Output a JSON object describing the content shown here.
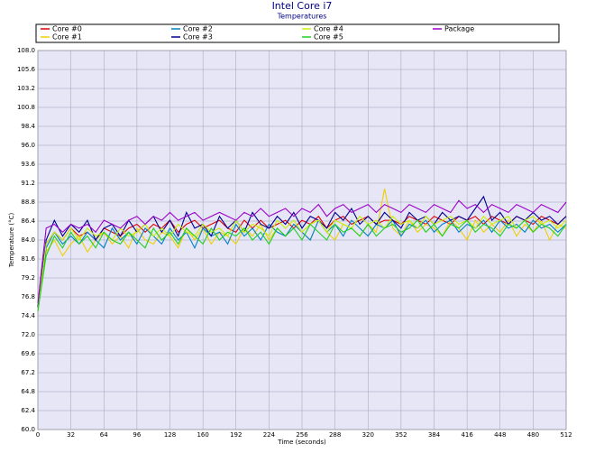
{
  "chart_data": {
    "type": "line",
    "title": "Intel Core i7",
    "subtitle": "Temperatures",
    "x_label": "Time (seconds)",
    "y_label": "Temperature (°C)",
    "x": [
      0,
      8,
      16,
      24,
      32,
      40,
      48,
      56,
      64,
      72,
      80,
      88,
      96,
      104,
      112,
      120,
      128,
      136,
      144,
      152,
      160,
      168,
      176,
      184,
      192,
      200,
      208,
      216,
      224,
      232,
      240,
      248,
      256,
      264,
      272,
      280,
      288,
      296,
      304,
      312,
      320,
      328,
      336,
      344,
      352,
      360,
      368,
      376,
      384,
      392,
      400,
      408,
      416,
      424,
      432,
      440,
      448,
      456,
      464,
      472,
      480,
      488,
      496,
      504,
      512
    ],
    "xlim": [
      0,
      512
    ],
    "xticks": [
      0,
      32,
      64,
      96,
      128,
      160,
      192,
      224,
      256,
      288,
      320,
      352,
      384,
      416,
      448,
      480,
      512
    ],
    "ylim": [
      60,
      108
    ],
    "yticks": [
      {
        "value": 60,
        "label": "60.0"
      },
      62.4,
      64.8,
      67.2,
      69.6,
      {
        "value": 72,
        "label": "72.0"
      },
      74.4,
      76.8,
      79.2,
      81.6,
      {
        "value": 84,
        "label": "84.0"
      },
      86.4,
      88.8,
      91.2,
      93.6,
      {
        "value": 96,
        "label": "96.0"
      },
      98.4,
      100.8,
      103.2,
      105.6,
      {
        "value": 108,
        "label": "108.0"
      }
    ],
    "grid": true,
    "series": [
      {
        "name": "Core #0",
        "color": "#e00000",
        "values": [
          75.5,
          83.5,
          85.0,
          84.0,
          85.5,
          84.5,
          85.0,
          84.0,
          85.5,
          85.0,
          84.5,
          85.5,
          86.0,
          85.0,
          86.0,
          85.5,
          86.5,
          85.0,
          86.0,
          86.5,
          85.5,
          86.0,
          86.5,
          85.5,
          85.0,
          86.5,
          85.5,
          86.5,
          85.5,
          86.0,
          86.5,
          85.5,
          86.5,
          86.0,
          87.0,
          85.5,
          86.5,
          87.0,
          86.0,
          86.5,
          87.0,
          86.0,
          86.5,
          86.5,
          86.0,
          87.0,
          86.5,
          86.0,
          87.0,
          86.5,
          86.0,
          87.0,
          86.5,
          87.0,
          86.0,
          87.0,
          86.5,
          86.0,
          87.0,
          86.5,
          86.0,
          87.0,
          86.5,
          86.0,
          87.0
        ]
      },
      {
        "name": "Core #1",
        "color": "#f0d000",
        "values": [
          75.0,
          82.5,
          84.0,
          82.0,
          83.5,
          84.5,
          82.5,
          84.0,
          85.0,
          83.5,
          84.5,
          83.0,
          85.5,
          84.0,
          83.5,
          85.0,
          84.5,
          83.0,
          85.5,
          84.0,
          85.5,
          83.5,
          85.0,
          84.5,
          83.5,
          85.5,
          84.5,
          86.0,
          84.0,
          85.5,
          84.5,
          86.0,
          85.0,
          84.0,
          86.5,
          85.0,
          84.0,
          86.0,
          85.5,
          84.5,
          86.0,
          85.0,
          90.5,
          85.5,
          84.5,
          86.5,
          85.0,
          86.0,
          85.5,
          84.5,
          86.5,
          85.5,
          84.0,
          86.5,
          85.0,
          86.0,
          85.0,
          86.5,
          84.5,
          86.0,
          85.0,
          86.5,
          84.0,
          86.0,
          85.5
        ]
      },
      {
        "name": "Core #2",
        "color": "#0080c8",
        "values": [
          75.0,
          83.0,
          85.0,
          83.5,
          84.5,
          83.5,
          85.0,
          84.0,
          83.0,
          85.5,
          84.0,
          85.0,
          83.5,
          85.5,
          84.5,
          83.5,
          85.5,
          84.0,
          85.0,
          83.0,
          85.5,
          84.5,
          85.0,
          83.5,
          86.0,
          84.5,
          85.5,
          84.0,
          86.0,
          85.0,
          84.5,
          86.0,
          85.0,
          84.0,
          86.5,
          85.0,
          86.0,
          84.5,
          86.5,
          85.5,
          84.5,
          86.0,
          85.5,
          86.5,
          84.5,
          86.0,
          85.5,
          86.5,
          85.0,
          86.0,
          86.5,
          85.0,
          86.0,
          85.5,
          86.5,
          85.0,
          86.5,
          85.5,
          86.0,
          85.0,
          86.5,
          85.5,
          86.0,
          85.0,
          86.0
        ]
      },
      {
        "name": "Core #3",
        "color": "#000090",
        "values": [
          75.5,
          84.0,
          86.5,
          84.5,
          86.0,
          85.0,
          86.5,
          84.0,
          85.5,
          86.0,
          84.5,
          86.5,
          85.0,
          86.0,
          87.0,
          85.0,
          86.5,
          84.5,
          87.5,
          85.5,
          86.0,
          84.5,
          87.0,
          85.5,
          86.5,
          85.0,
          87.5,
          86.0,
          85.5,
          87.0,
          86.0,
          87.5,
          85.5,
          87.0,
          86.5,
          85.5,
          87.5,
          86.5,
          88.0,
          86.0,
          87.0,
          86.0,
          87.5,
          86.5,
          85.5,
          87.5,
          86.5,
          87.0,
          86.0,
          87.5,
          86.5,
          87.0,
          86.5,
          88.0,
          89.5,
          86.5,
          87.5,
          86.0,
          87.0,
          86.5,
          87.5,
          86.5,
          87.0,
          86.0,
          87.0
        ]
      },
      {
        "name": "Core #4",
        "color": "#c8f000",
        "values": [
          75.0,
          83.5,
          85.0,
          84.0,
          85.5,
          84.0,
          85.5,
          84.5,
          85.0,
          84.0,
          85.5,
          84.5,
          85.0,
          86.0,
          84.5,
          85.5,
          84.5,
          86.0,
          85.0,
          84.5,
          86.0,
          85.0,
          85.5,
          84.5,
          86.5,
          85.0,
          86.0,
          85.5,
          84.5,
          86.5,
          85.5,
          86.5,
          85.0,
          86.0,
          86.5,
          85.0,
          86.5,
          86.0,
          85.5,
          87.0,
          86.0,
          86.5,
          85.5,
          87.0,
          86.0,
          86.5,
          85.5,
          87.0,
          86.0,
          86.5,
          87.0,
          86.0,
          86.5,
          85.5,
          87.0,
          86.0,
          86.5,
          87.0,
          85.5,
          86.5,
          87.0,
          86.0,
          86.5,
          85.5,
          86.5
        ]
      },
      {
        "name": "Core #5",
        "color": "#20d020",
        "values": [
          75.0,
          82.0,
          84.5,
          83.0,
          85.0,
          83.5,
          84.5,
          83.0,
          85.0,
          84.0,
          83.5,
          85.0,
          84.0,
          83.0,
          85.5,
          84.0,
          85.0,
          83.5,
          85.5,
          84.5,
          83.5,
          85.5,
          84.0,
          85.0,
          84.5,
          85.5,
          84.0,
          85.0,
          83.5,
          85.5,
          84.5,
          85.5,
          84.0,
          86.0,
          85.0,
          84.0,
          86.0,
          85.0,
          85.5,
          84.5,
          86.0,
          84.5,
          85.5,
          86.0,
          85.0,
          85.5,
          86.5,
          85.0,
          86.0,
          84.5,
          86.0,
          85.5,
          86.5,
          85.0,
          86.0,
          85.5,
          84.5,
          86.0,
          85.5,
          86.5,
          85.0,
          86.0,
          85.5,
          84.5,
          86.0
        ]
      },
      {
        "name": "Package",
        "color": "#9a00c8",
        "values": [
          76.0,
          85.5,
          86.0,
          85.0,
          86.0,
          85.5,
          86.0,
          85.0,
          86.5,
          86.0,
          85.5,
          86.5,
          87.0,
          86.0,
          87.0,
          86.5,
          87.5,
          86.5,
          87.0,
          87.5,
          86.5,
          87.0,
          87.5,
          87.0,
          86.5,
          87.5,
          87.0,
          88.0,
          87.0,
          87.5,
          88.0,
          87.0,
          88.0,
          87.5,
          88.5,
          87.0,
          88.0,
          88.5,
          87.5,
          88.0,
          88.5,
          87.5,
          88.5,
          88.0,
          87.5,
          88.5,
          88.0,
          87.5,
          88.5,
          88.0,
          87.5,
          89.0,
          88.0,
          88.5,
          87.5,
          88.5,
          88.0,
          87.5,
          88.5,
          88.0,
          87.5,
          88.5,
          88.0,
          87.5,
          88.8
        ]
      }
    ]
  }
}
